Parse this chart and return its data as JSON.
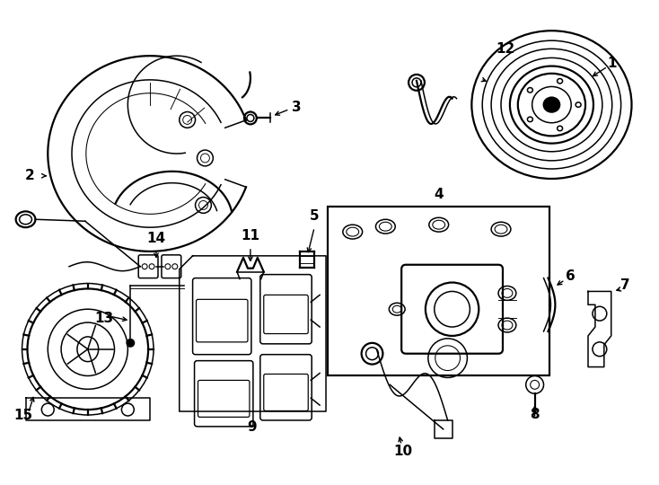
{
  "background_color": "#ffffff",
  "fig_width": 7.34,
  "fig_height": 5.4,
  "dpi": 100,
  "label_fontsize": 11,
  "label_bold": true,
  "lw": 1.1,
  "lw_thick": 1.6,
  "color": "#000000"
}
